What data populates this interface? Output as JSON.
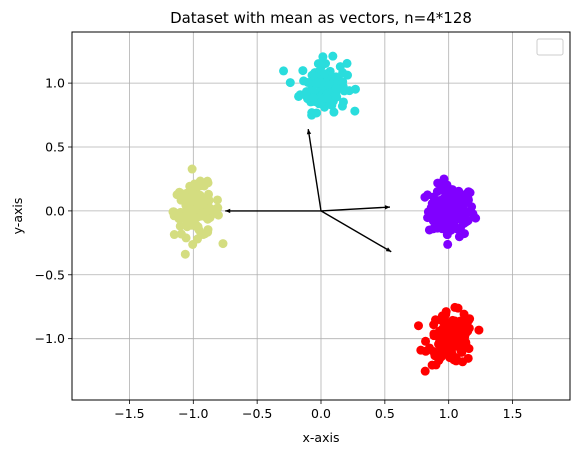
{
  "chart_data": {
    "type": "scatter",
    "title": "Dataset with mean as vectors, n=4*128",
    "xlabel": "x-axis",
    "ylabel": "y-axis",
    "xlim": [
      -1.95,
      1.95
    ],
    "ylim": [
      -1.48,
      1.4
    ],
    "xticks": [
      -1.5,
      -1.0,
      -0.5,
      0.0,
      0.5,
      1.0,
      1.5
    ],
    "xtick_labels": [
      "−1.5",
      "−1.0",
      "−0.5",
      "0.0",
      "0.5",
      "1.0",
      "1.5"
    ],
    "yticks": [
      -1.0,
      -0.5,
      0.0,
      0.5,
      1.0
    ],
    "ytick_labels": [
      "−1.0",
      "−0.5",
      "0.0",
      "0.5",
      "1.0"
    ],
    "grid": true,
    "legend": "upper right (empty)",
    "clusters": [
      {
        "center": [
          1.02,
          0.0
        ],
        "color": "#8000ff",
        "count": 128
      },
      {
        "center": [
          0.02,
          0.98
        ],
        "color": "#2adddd",
        "count": 128
      },
      {
        "center": [
          -0.97,
          0.0
        ],
        "color": "#d4dd80",
        "count": 128
      },
      {
        "center": [
          1.02,
          -1.0
        ],
        "color": "#ff0000",
        "count": 128
      }
    ],
    "vectors": [
      {
        "from": [
          0,
          0
        ],
        "to": [
          -0.75,
          0.0
        ]
      },
      {
        "from": [
          0,
          0
        ],
        "to": [
          -0.1,
          0.64
        ]
      },
      {
        "from": [
          0,
          0
        ],
        "to": [
          0.54,
          0.03
        ]
      },
      {
        "from": [
          0,
          0
        ],
        "to": [
          0.55,
          -0.32
        ]
      }
    ]
  }
}
